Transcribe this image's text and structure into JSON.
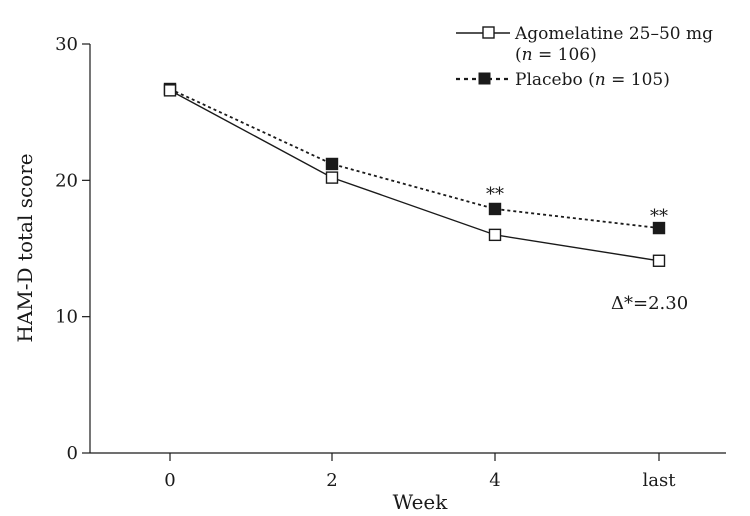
{
  "chart_data": {
    "type": "line",
    "title": "",
    "xlabel": "Week",
    "ylabel": "HAM-D total score",
    "categories": [
      "0",
      "2",
      "4",
      "last"
    ],
    "ylim": [
      0,
      30
    ],
    "yticks": [
      0,
      10,
      20,
      30
    ],
    "grid": false,
    "legend_position": "top-right",
    "series": [
      {
        "name": "Agomelatine 25–50 mg",
        "name_line2_prefix": "(",
        "name_line2_italic": "n",
        "name_line2_suffix": " = 106)",
        "values": [
          26.6,
          20.2,
          16.0,
          14.1
        ],
        "marker": "open-square",
        "line": "solid",
        "color": "#1a1a1a"
      },
      {
        "name": "Placebo (",
        "name_italic": "n",
        "name_suffix": " = 105)",
        "values": [
          26.7,
          21.2,
          17.9,
          16.5
        ],
        "marker": "filled-square",
        "line": "dotted",
        "color": "#1a1a1a"
      }
    ],
    "annotations": [
      {
        "text": "**",
        "category": "4"
      },
      {
        "text": "**",
        "category": "last"
      },
      {
        "text": "Δ*=2.30",
        "category": "last"
      }
    ]
  }
}
